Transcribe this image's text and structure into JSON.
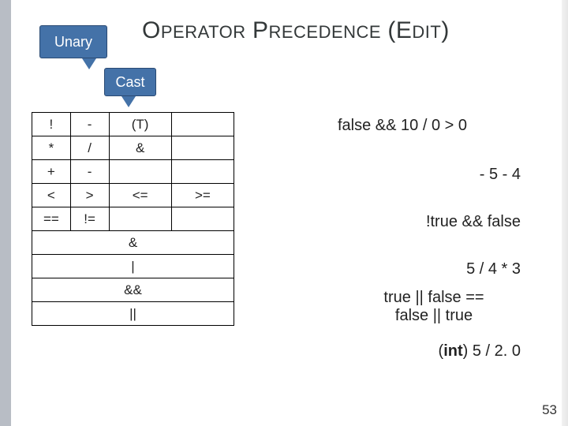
{
  "title": {
    "full": "OPERATOR PRECEDENCE (EDIT)",
    "parts": [
      "O",
      "PERATOR ",
      "P",
      "RECEDENCE ",
      "(E",
      "DIT",
      ")"
    ]
  },
  "boxes": {
    "unary": "Unary",
    "cast": "Cast"
  },
  "table": {
    "rows": [
      [
        "!",
        "-",
        "(T)",
        ""
      ],
      [
        "*",
        "/",
        "&",
        ""
      ],
      [
        "+",
        "-",
        "",
        ""
      ],
      [
        "<",
        ">",
        "<=",
        ">="
      ],
      [
        "==",
        "!=",
        "",
        ""
      ]
    ],
    "singles": [
      "&",
      "|",
      "&&",
      "||"
    ]
  },
  "expressions": {
    "e1": "false && 10 / 0 > 0",
    "e2": "- 5 - 4",
    "e3": "!true && false",
    "e4": "5 / 4 * 3",
    "e5_a": "true || false ==",
    "e5_b": "false || true",
    "e6_pre": "(",
    "e6_bold": "int",
    "e6_post": ") 5 / 2. 0"
  },
  "pagenum": "53",
  "colors": {
    "sidebar": "#b8bdc5",
    "box_bg": "#4472a8",
    "box_border": "#2a4a73",
    "text": "#222222"
  }
}
